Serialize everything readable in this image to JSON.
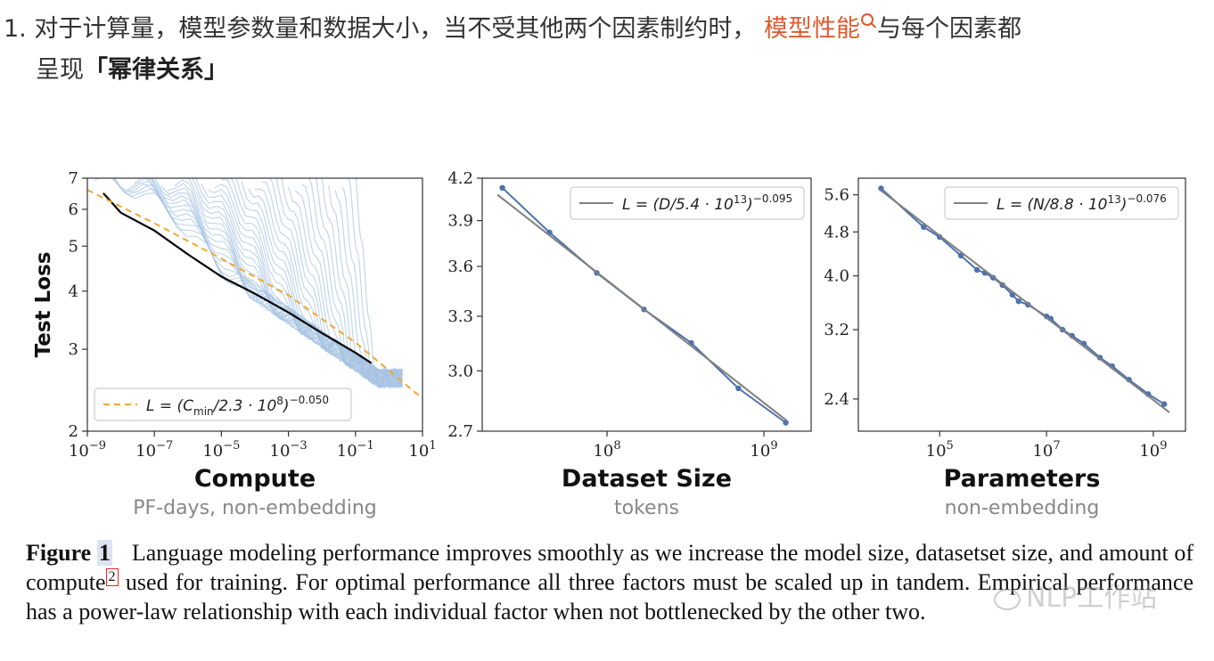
{
  "intro": {
    "number": "1.",
    "text_a": "对于计算量，模型参数量和数据大小，当不受其他两个因素制约时，",
    "link_text": "模型性能",
    "text_b": "与每个因素都",
    "text_c": "呈现",
    "bold_text": "「幂律关系」",
    "link_color": "#e05a2f"
  },
  "chart_data": [
    {
      "type": "line",
      "title": "Compute",
      "subtitle": "PF-days, non-embedding",
      "ylabel": "Test Loss",
      "xscale": "log",
      "yscale": "log",
      "xlim": [
        1e-09,
        10
      ],
      "ylim": [
        2,
        7
      ],
      "x_ticks": [
        "10^-9",
        "10^-7",
        "10^-5",
        "10^-3",
        "10^-1",
        "10^1"
      ],
      "y_ticks": [
        "2",
        "3",
        "4",
        "5",
        "6",
        "7"
      ],
      "legend": {
        "text": "L = (Cmin/2.3 · 10^8)^-0.050",
        "position": "lower-left"
      },
      "series": [
        {
          "style": "training-curves",
          "color": "#a8c4e2",
          "count": 40
        },
        {
          "style": "frontier",
          "color": "#000000",
          "x": [
            3e-09,
            1e-08,
            1e-07,
            1e-06,
            1e-05,
            0.0001,
            0.001,
            0.01,
            0.1,
            0.3
          ],
          "y": [
            6.5,
            5.9,
            5.4,
            4.8,
            4.3,
            3.95,
            3.6,
            3.25,
            2.95,
            2.8
          ]
        },
        {
          "style": "fit",
          "color": "#f0a830",
          "x": [
            1e-09,
            1e-07,
            1e-05,
            0.001,
            0.1,
            10
          ],
          "y": [
            6.6,
            5.6,
            4.7,
            3.92,
            3.1,
            2.35
          ]
        }
      ]
    },
    {
      "type": "line",
      "title": "Dataset Size",
      "subtitle": "tokens",
      "xscale": "log",
      "yscale": "log",
      "xlim": [
        16000000.0,
        2000000000.0
      ],
      "ylim": [
        2.7,
        4.2
      ],
      "x_ticks": [
        "10^8",
        "10^9"
      ],
      "y_ticks": [
        "2.7",
        "3.0",
        "3.3",
        "3.6",
        "3.9",
        "4.2"
      ],
      "legend": {
        "text": "L = (D/5.4 · 10^13)^-0.095",
        "position": "upper-right"
      },
      "series": [
        {
          "style": "data",
          "color": "#4c72b0",
          "x": [
            21500000.0,
            43000000.0,
            86000000.0,
            172000000.0,
            344000000.0,
            688000000.0,
            1380000000.0
          ],
          "y": [
            4.13,
            3.82,
            3.56,
            3.34,
            3.15,
            2.91,
            2.74
          ]
        },
        {
          "style": "fit",
          "color": "#808080",
          "x": [
            20000000.0,
            1400000000.0
          ],
          "y": [
            4.08,
            2.75
          ]
        }
      ]
    },
    {
      "type": "line",
      "title": "Parameters",
      "subtitle": "non-embedding",
      "xscale": "log",
      "yscale": "log",
      "xlim": [
        3000.0,
        4000000000.0
      ],
      "ylim": [
        2.1,
        6.0
      ],
      "x_ticks": [
        "10^5",
        "10^7",
        "10^9"
      ],
      "y_ticks": [
        "2.4",
        "3.2",
        "4.0",
        "4.8",
        "5.6"
      ],
      "legend": {
        "text": "L = (N/8.8 · 10^13)^-0.076",
        "position": "upper-right"
      },
      "series": [
        {
          "style": "data",
          "color": "#4c72b0",
          "x": [
            8000.0,
            50000.0,
            100000.0,
            250000.0,
            500000.0,
            700000.0,
            1000000.0,
            1500000.0,
            2300000.0,
            3000000.0,
            4500000.0,
            10000000.0,
            12000000.0,
            20000000.0,
            30000000.0,
            50000000.0,
            100000000.0,
            170000000.0,
            350000000.0,
            800000000.0,
            1600000000.0
          ],
          "y": [
            5.75,
            4.9,
            4.7,
            4.35,
            4.1,
            4.05,
            3.97,
            3.85,
            3.7,
            3.6,
            3.55,
            3.38,
            3.35,
            3.2,
            3.12,
            3.02,
            2.85,
            2.75,
            2.6,
            2.45,
            2.35
          ]
        },
        {
          "style": "fit",
          "color": "#808080",
          "x": [
            8000.0,
            2000000000.0
          ],
          "y": [
            5.7,
            2.27
          ]
        }
      ]
    }
  ],
  "caption": {
    "label": "Figure",
    "number": "1",
    "text_a": "Language modeling performance improves smoothly as we increase the model size, datasetset size, and amount of compute",
    "ref": "2",
    "text_b": "used for training. For optimal performance all three factors must be scaled up in tandem. Empirical performance has a power-law relationship with each individual factor when not bottlenecked by the other two."
  },
  "watermark": {
    "text": "NLP工作站"
  }
}
